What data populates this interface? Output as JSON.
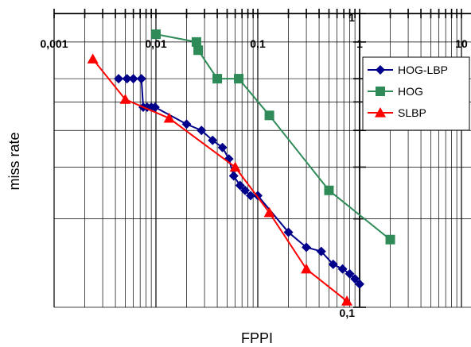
{
  "chart_data": {
    "type": "line",
    "title": "",
    "xlabel": "FPPI",
    "ylabel": "miss rate",
    "xscale": "log",
    "yscale": "log",
    "xlim": [
      0.001,
      10
    ],
    "ylim": [
      0.1,
      1
    ],
    "grid": true,
    "x_tick_labels": [
      "0,001",
      "0,01",
      "0,1",
      "1",
      "10"
    ],
    "y_tick_labels": [
      "1",
      "0,1"
    ],
    "legend_position": "top-right",
    "series": [
      {
        "name": "HOG-LBP",
        "color": "#00008b",
        "marker": "diamond",
        "x": [
          0.0043,
          0.0052,
          0.006,
          0.0072,
          0.0075,
          0.0082,
          0.009,
          0.0098,
          0.02,
          0.028,
          0.036,
          0.045,
          0.052,
          0.058,
          0.067,
          0.075,
          0.085,
          0.1,
          0.2,
          0.3,
          0.42,
          0.55,
          0.68,
          0.8,
          0.9,
          1.0
        ],
        "y": [
          0.6,
          0.6,
          0.6,
          0.6,
          0.48,
          0.48,
          0.48,
          0.48,
          0.42,
          0.4,
          0.37,
          0.35,
          0.32,
          0.28,
          0.26,
          0.25,
          0.24,
          0.24,
          0.18,
          0.16,
          0.155,
          0.14,
          0.135,
          0.13,
          0.125,
          0.12
        ]
      },
      {
        "name": "HOG",
        "color": "#2e8b57",
        "marker": "square",
        "x": [
          0.01,
          0.025,
          0.026,
          0.04,
          0.065,
          0.13,
          0.5,
          2.0
        ],
        "y": [
          0.85,
          0.8,
          0.75,
          0.6,
          0.6,
          0.45,
          0.25,
          0.17
        ]
      },
      {
        "name": "SLBP",
        "color": "#ff0000",
        "marker": "triangle",
        "x": [
          0.0024,
          0.005,
          0.0135,
          0.06,
          0.13,
          0.3,
          0.75
        ],
        "y": [
          0.7,
          0.51,
          0.44,
          0.3,
          0.21,
          0.135,
          0.105
        ]
      }
    ]
  }
}
